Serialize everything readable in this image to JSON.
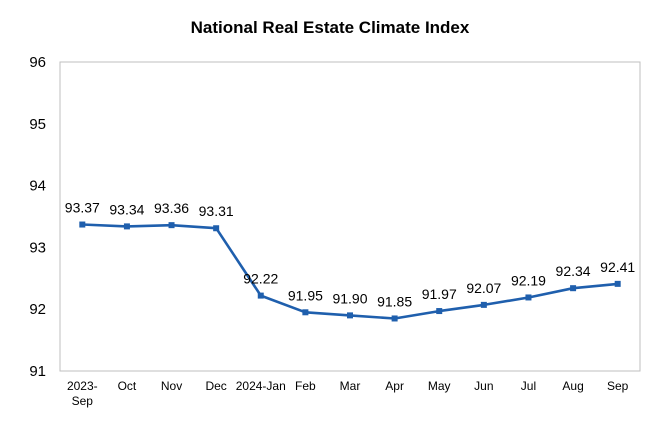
{
  "chart_data": {
    "type": "line",
    "title": "National Real Estate Climate Index",
    "xlabel": "",
    "ylabel": "",
    "categories": [
      [
        "2023-",
        "Sep"
      ],
      [
        "Oct"
      ],
      [
        "Nov"
      ],
      [
        "Dec"
      ],
      [
        "2024-Jan"
      ],
      [
        "Feb"
      ],
      [
        "Mar"
      ],
      [
        "Apr"
      ],
      [
        "May"
      ],
      [
        "Jun"
      ],
      [
        "Jul"
      ],
      [
        "Aug"
      ],
      [
        "Sep"
      ]
    ],
    "values": [
      93.37,
      93.34,
      93.36,
      93.31,
      92.22,
      91.95,
      91.9,
      91.85,
      91.97,
      92.07,
      92.19,
      92.34,
      92.41
    ],
    "data_labels": [
      "93.37",
      "93.34",
      "93.36",
      "93.31",
      "92.22",
      "91.95",
      "91.90",
      "91.85",
      "91.97",
      "92.07",
      "92.19",
      "92.34",
      "92.41"
    ],
    "ylim": [
      91,
      96
    ],
    "yticks": [
      91,
      92,
      93,
      94,
      95,
      96
    ],
    "grid": false,
    "legend": "none",
    "line_color": "#1F5FAD",
    "marker": "square"
  }
}
